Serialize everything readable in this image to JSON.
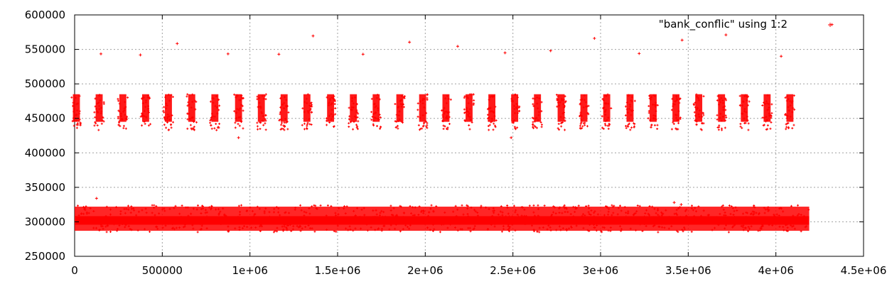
{
  "chart_data": {
    "type": "scatter",
    "title": "",
    "xlabel": "",
    "ylabel": "",
    "xlim": [
      0,
      4500000
    ],
    "ylim": [
      250000,
      600000
    ],
    "x_ticks": [
      0,
      500000,
      1000000,
      1500000,
      2000000,
      2500000,
      3000000,
      3500000,
      4000000,
      4500000
    ],
    "x_tick_labels": [
      "0",
      "500000",
      "1e+06",
      "1.5e+06",
      "2e+06",
      "2.5e+06",
      "3e+06",
      "3.5e+06",
      "4e+06",
      "4.5e+06"
    ],
    "y_ticks": [
      250000,
      300000,
      350000,
      400000,
      450000,
      500000,
      550000,
      600000
    ],
    "y_tick_labels": [
      "250000",
      "300000",
      "350000",
      "400000",
      "450000",
      "500000",
      "550000",
      "600000"
    ],
    "grid": true,
    "legend": {
      "position": "top-right",
      "label": "\"bank_conflic\" using 1:2"
    },
    "series": [
      {
        "name": "\"bank_conflic\" using 1:2",
        "color": "#ff0000",
        "marker": "cross",
        "baseline_band": {
          "x_range": [
            0,
            4190000
          ],
          "y_range": [
            287000,
            322000
          ],
          "dense_center_y": 302000
        },
        "cluster_band": {
          "y_range": [
            445000,
            485000
          ],
          "sparse_y_range": [
            433000,
            445000
          ],
          "cluster_width_x": 40000
        },
        "cluster_centers_x": [
          10000,
          140000,
          275000,
          405000,
          535000,
          668000,
          800000,
          935000,
          1065000,
          1195000,
          1325000,
          1460000,
          1590000,
          1720000,
          1855000,
          1985000,
          2118000,
          2250000,
          2380000,
          2510000,
          2640000,
          2775000,
          2905000,
          3035000,
          3168000,
          3300000,
          3430000,
          3560000,
          3690000,
          3820000,
          3950000,
          4080000
        ],
        "outlier_points": [
          [
            150000,
            543500
          ],
          [
            375000,
            542000
          ],
          [
            585000,
            558500
          ],
          [
            875000,
            543500
          ],
          [
            1165000,
            543000
          ],
          [
            1360000,
            569500
          ],
          [
            1645000,
            543000
          ],
          [
            1910000,
            560500
          ],
          [
            2185000,
            554500
          ],
          [
            2455000,
            545000
          ],
          [
            2715000,
            548000
          ],
          [
            2965000,
            566000
          ],
          [
            3220000,
            544000
          ],
          [
            3465000,
            563500
          ],
          [
            3715000,
            571000
          ],
          [
            4030000,
            540000
          ],
          [
            4320000,
            586000
          ],
          [
            935000,
            422000
          ],
          [
            2490000,
            422000
          ],
          [
            125000,
            334000
          ],
          [
            3420000,
            328000
          ],
          [
            3460000,
            325000
          ]
        ]
      }
    ]
  }
}
